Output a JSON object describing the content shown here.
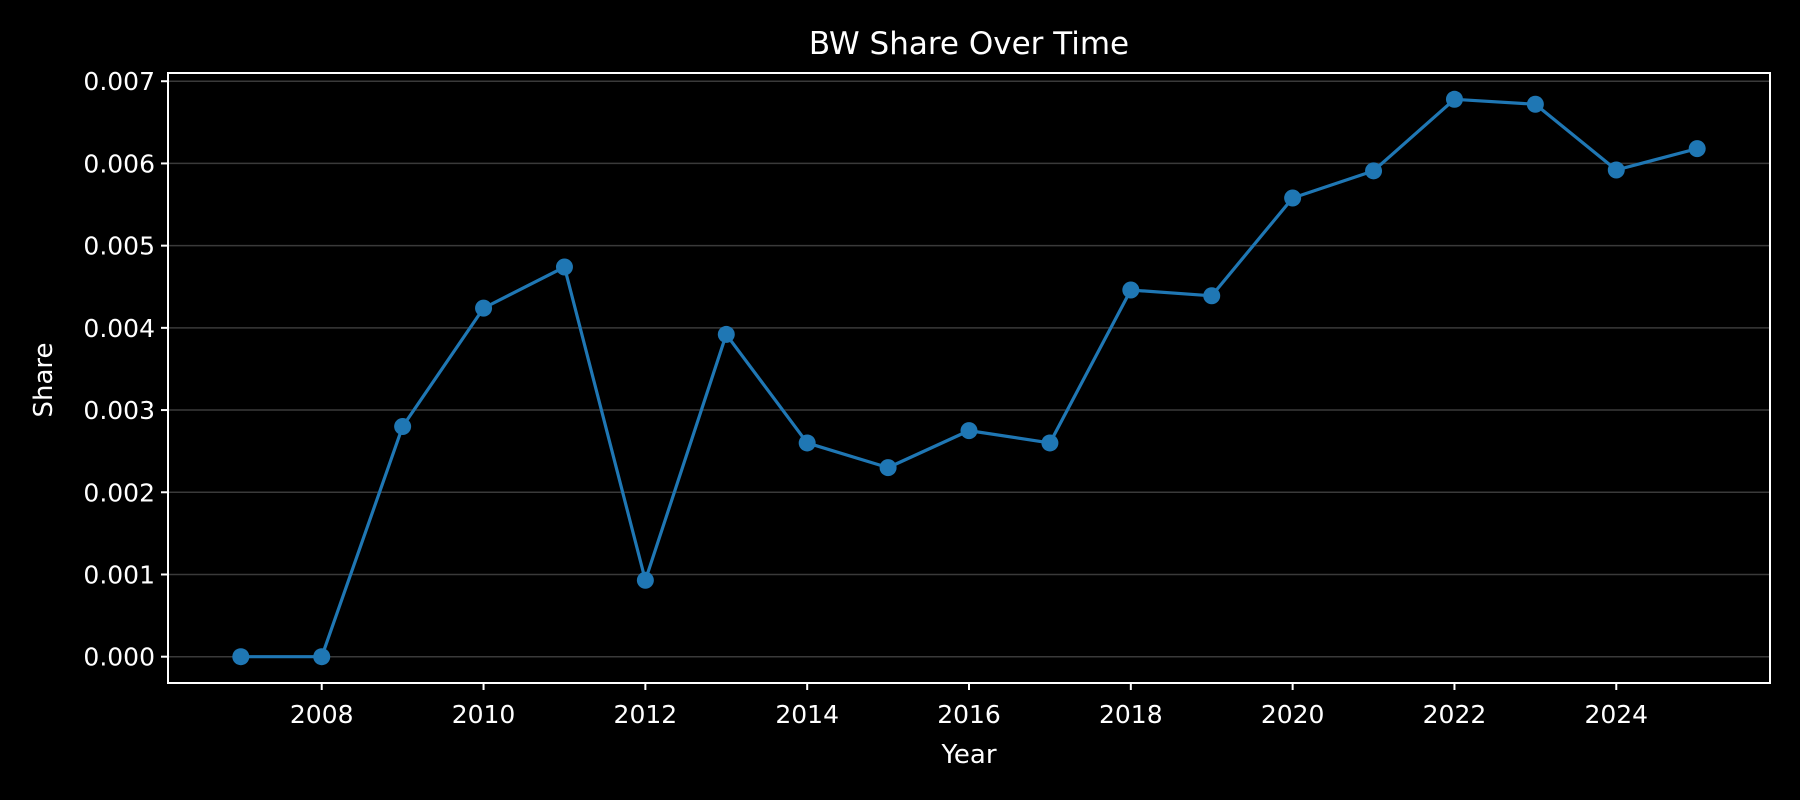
{
  "chart_data": {
    "type": "line",
    "title": "BW Share Over Time",
    "xlabel": "Year",
    "ylabel": "Share",
    "x": [
      2007,
      2008,
      2009,
      2010,
      2011,
      2012,
      2013,
      2014,
      2015,
      2016,
      2017,
      2018,
      2019,
      2020,
      2021,
      2022,
      2023,
      2024,
      2025
    ],
    "series": [
      {
        "values": [
          0.0,
          0.0,
          0.0028,
          0.00424,
          0.00474,
          0.00093,
          0.00392,
          0.0026,
          0.0023,
          0.00275,
          0.0026,
          0.00446,
          0.00439,
          0.00558,
          0.00591,
          0.00678,
          0.00672,
          0.00592,
          0.00618
        ],
        "color": "#1f77b4"
      }
    ],
    "xlim": [
      2006.1,
      2025.9
    ],
    "ylim": [
      -0.00032,
      0.0071
    ],
    "x_ticks": [
      2008,
      2010,
      2012,
      2014,
      2016,
      2018,
      2020,
      2022,
      2024
    ],
    "x_tick_labels": [
      "2008",
      "2010",
      "2012",
      "2014",
      "2016",
      "2018",
      "2020",
      "2022",
      "2024"
    ],
    "y_ticks": [
      0.0,
      0.001,
      0.002,
      0.003,
      0.004,
      0.005,
      0.006,
      0.007
    ],
    "y_tick_labels": [
      "0.000",
      "0.001",
      "0.002",
      "0.003",
      "0.004",
      "0.005",
      "0.006",
      "0.007"
    ],
    "grid": "horizontal",
    "markers": "circle",
    "colors": {
      "background": "#000000",
      "axes": "#ffffff",
      "grid": "#3a3a3a",
      "line": "#1f77b4"
    }
  }
}
